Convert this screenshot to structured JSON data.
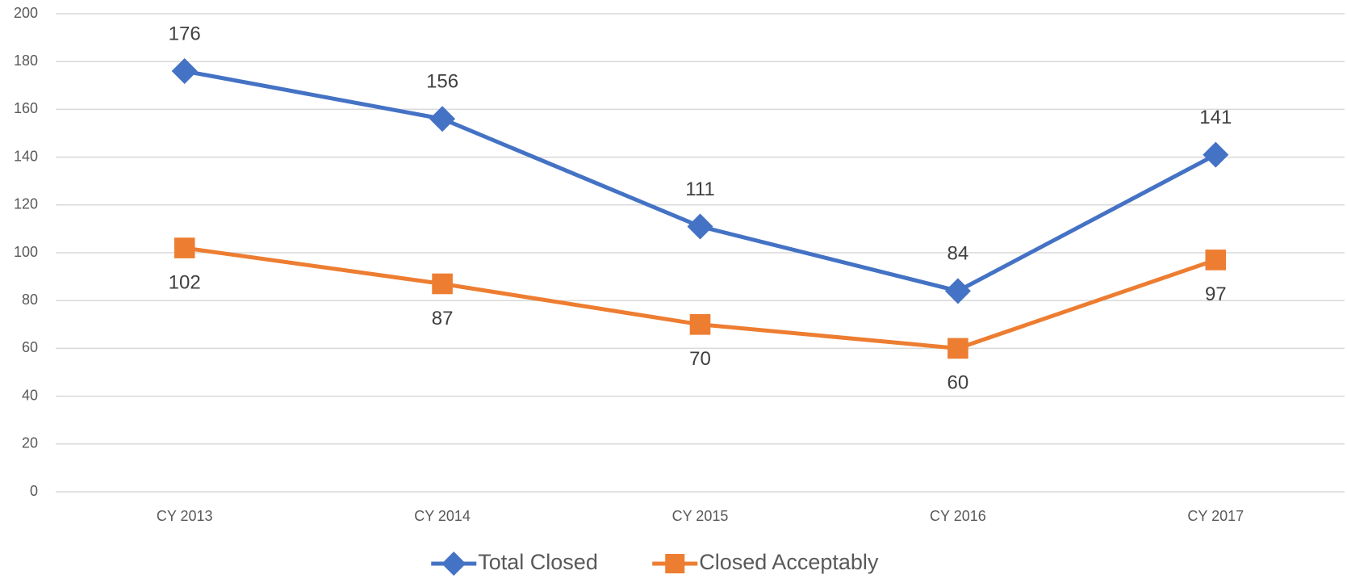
{
  "chart_data": {
    "type": "line",
    "categories": [
      "CY 2013",
      "CY 2014",
      "CY 2015",
      "CY 2016",
      "CY 2017"
    ],
    "series": [
      {
        "name": "Total Closed",
        "color": "#4472c4",
        "marker": "diamond",
        "values": [
          176,
          156,
          111,
          84,
          141
        ]
      },
      {
        "name": "Closed Acceptably",
        "color": "#ed7d31",
        "marker": "square",
        "values": [
          102,
          87,
          70,
          60,
          97
        ]
      }
    ],
    "ylim": [
      0,
      200
    ],
    "yticks": [
      0,
      20,
      40,
      60,
      80,
      100,
      120,
      140,
      160,
      180,
      200
    ],
    "grid": true
  }
}
